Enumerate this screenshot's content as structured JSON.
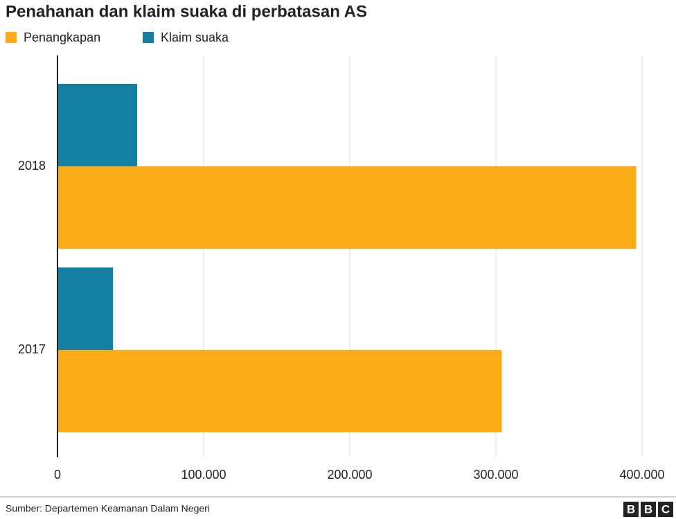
{
  "chart_data": {
    "type": "barh",
    "title": "Penahanan dan klaim suaka di perbatasan AS",
    "categories": [
      "2018",
      "2017"
    ],
    "series": [
      {
        "name": "Penangkapan",
        "color": "#faab18",
        "values": [
          396000,
          304000
        ]
      },
      {
        "name": "Klaim suaka",
        "color": "#1380a1",
        "values": [
          54500,
          38000
        ]
      }
    ],
    "xlim": [
      0,
      400000
    ],
    "xticks": [
      0,
      {
        "value": 100000,
        "label": "100.000"
      },
      {
        "value": 200000,
        "label": "200.000"
      },
      {
        "value": 300000,
        "label": "300.000"
      },
      {
        "value": 400000,
        "label": "400.000"
      }
    ],
    "grid": true,
    "source": "Sumber: Departemen Keamanan Dalam Negeri",
    "logo": [
      "B",
      "B",
      "C"
    ]
  }
}
